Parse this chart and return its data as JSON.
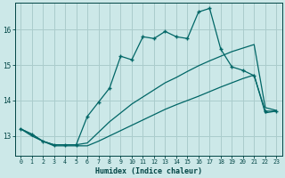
{
  "xlabel": "Humidex (Indice chaleur)",
  "background_color": "#cce8e8",
  "grid_color": "#aacccc",
  "line_color": "#006666",
  "xlim": [
    -0.5,
    23.5
  ],
  "ylim": [
    12.45,
    16.75
  ],
  "yticks": [
    13,
    14,
    15,
    16
  ],
  "xticks": [
    0,
    1,
    2,
    3,
    4,
    5,
    6,
    7,
    8,
    9,
    10,
    11,
    12,
    13,
    14,
    15,
    16,
    17,
    18,
    19,
    20,
    21,
    22,
    23
  ],
  "line_jagged_x": [
    0,
    1,
    2,
    3,
    4,
    5,
    6,
    7,
    8,
    9,
    10,
    11,
    12,
    13,
    14,
    15,
    16,
    17,
    18,
    19,
    20,
    21,
    22,
    23
  ],
  "line_jagged_y": [
    13.2,
    13.05,
    12.85,
    12.75,
    12.75,
    12.75,
    13.55,
    13.95,
    14.35,
    15.25,
    15.15,
    15.8,
    15.75,
    15.95,
    15.8,
    15.75,
    16.5,
    16.6,
    15.45,
    14.95,
    14.85,
    14.7,
    13.7,
    13.7
  ],
  "line_upper_x": [
    0,
    1,
    2,
    3,
    4,
    5,
    6,
    7,
    8,
    9,
    10,
    11,
    12,
    13,
    14,
    15,
    16,
    17,
    18,
    19,
    20,
    21,
    22,
    23
  ],
  "line_upper_y": [
    13.2,
    13.05,
    12.85,
    12.75,
    12.75,
    12.75,
    12.8,
    13.1,
    13.4,
    13.65,
    13.9,
    14.1,
    14.3,
    14.5,
    14.65,
    14.82,
    14.98,
    15.12,
    15.25,
    15.38,
    15.48,
    15.58,
    13.8,
    13.72
  ],
  "line_lower_x": [
    0,
    1,
    2,
    3,
    4,
    5,
    6,
    7,
    8,
    9,
    10,
    11,
    12,
    13,
    14,
    15,
    16,
    17,
    18,
    19,
    20,
    21,
    22,
    23
  ],
  "line_lower_y": [
    13.2,
    13.0,
    12.85,
    12.72,
    12.72,
    12.72,
    12.72,
    12.85,
    13.0,
    13.15,
    13.3,
    13.45,
    13.6,
    13.75,
    13.88,
    14.0,
    14.12,
    14.25,
    14.38,
    14.5,
    14.62,
    14.72,
    13.65,
    13.7
  ]
}
